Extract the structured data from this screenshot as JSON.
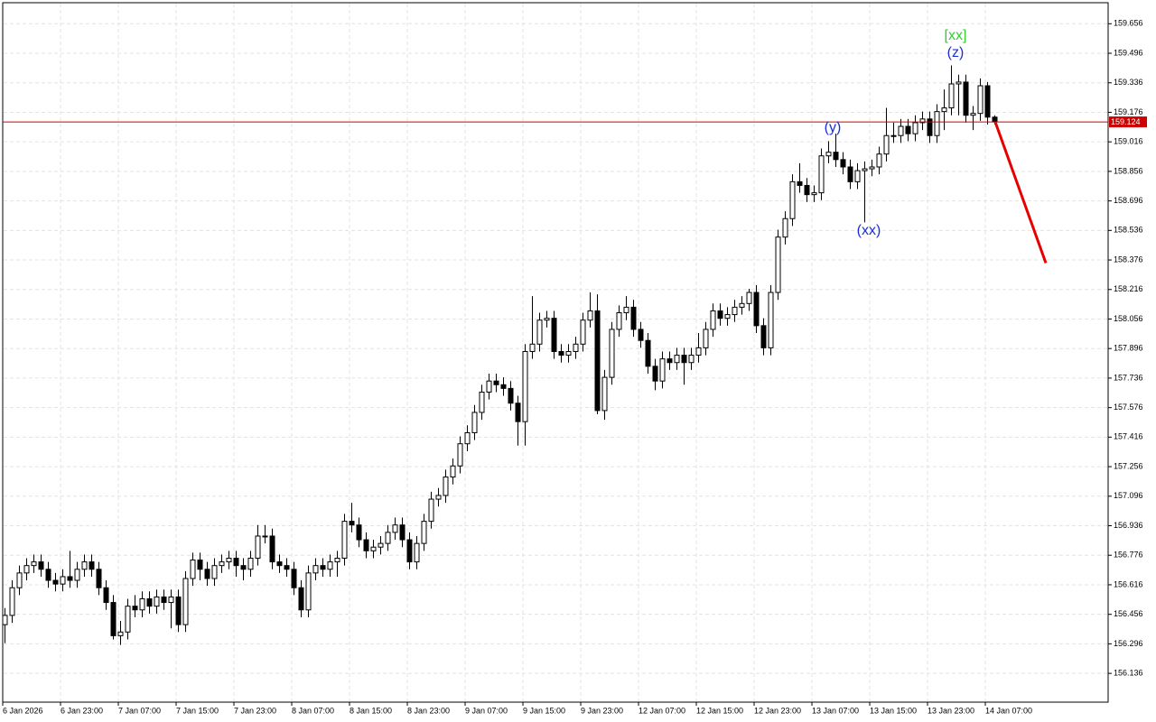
{
  "chart_data": {
    "type": "candlestick",
    "categories": [
      "6 Jan 2026",
      null,
      null,
      null,
      null,
      null,
      null,
      null,
      "6 Jan 23:00",
      null,
      null,
      null,
      null,
      null,
      null,
      null,
      "7 Jan 07:00",
      null,
      null,
      null,
      null,
      null,
      null,
      null,
      "7 Jan 15:00",
      null,
      null,
      null,
      null,
      null,
      null,
      null,
      "7 Jan 23:00",
      null,
      null,
      null,
      null,
      null,
      null,
      null,
      "8 Jan 07:00",
      null,
      null,
      null,
      null,
      null,
      null,
      null,
      "8 Jan 15:00",
      null,
      null,
      null,
      null,
      null,
      null,
      null,
      "8 Jan 23:00",
      null,
      null,
      null,
      null,
      null,
      null,
      null,
      "9 Jan 07:00",
      null,
      null,
      null,
      null,
      null,
      null,
      null,
      "9 Jan 15:00",
      null,
      null,
      null,
      null,
      null,
      null,
      null,
      "9 Jan 23:00",
      null,
      null,
      null,
      null,
      null,
      null,
      null,
      "12 Jan 07:00",
      null,
      null,
      null,
      null,
      null,
      null,
      null,
      "12 Jan 15:00",
      null,
      null,
      null,
      null,
      null,
      null,
      null,
      "12 Jan 23:00",
      null,
      null,
      null,
      null,
      null,
      null,
      null,
      "13 Jan 07:00",
      null,
      null,
      null,
      null,
      null,
      null,
      null,
      "13 Jan 15:00",
      null,
      null,
      null,
      null,
      null,
      null,
      null,
      "13 Jan 23:00",
      null,
      null,
      null,
      null,
      null,
      null,
      null,
      "14 Jan 07:00",
      null
    ],
    "open": [
      156.4,
      156.45,
      156.6,
      156.68,
      156.72,
      156.74,
      156.7,
      156.64,
      156.62,
      156.66,
      156.64,
      156.7,
      156.74,
      156.7,
      156.6,
      156.52,
      156.34,
      156.36,
      156.5,
      156.48,
      156.54,
      156.5,
      156.55,
      156.52,
      156.55,
      156.4,
      156.65,
      156.75,
      156.7,
      156.65,
      156.72,
      156.74,
      156.76,
      156.72,
      156.7,
      156.76,
      156.88,
      156.88,
      156.74,
      156.72,
      156.7,
      156.6,
      156.48,
      156.68,
      156.72,
      156.7,
      156.74,
      156.76,
      156.96,
      156.94,
      156.86,
      156.8,
      156.82,
      156.84,
      156.9,
      156.94,
      156.86,
      156.74,
      156.84,
      156.96,
      157.08,
      157.1,
      157.2,
      157.26,
      157.38,
      157.44,
      157.55,
      157.66,
      157.72,
      157.7,
      157.68,
      157.6,
      157.5,
      157.88,
      157.92,
      158.05,
      158.06,
      157.88,
      157.86,
      157.88,
      157.92,
      158.05,
      158.1,
      157.56,
      157.74,
      158.0,
      158.09,
      158.12,
      158.0,
      157.94,
      157.8,
      157.72,
      157.84,
      157.82,
      157.86,
      157.82,
      157.86,
      157.9,
      158.0,
      158.1,
      158.06,
      158.08,
      158.12,
      158.14,
      158.2,
      158.02,
      157.9,
      158.2,
      158.5,
      158.6,
      158.8,
      158.78,
      158.73,
      158.74,
      158.94,
      158.96,
      158.92,
      158.88,
      158.8,
      158.86,
      158.87,
      158.88,
      158.95,
      159.05,
      159.05,
      159.1,
      159.06,
      159.12,
      159.14,
      159.05,
      159.18,
      159.2,
      159.33,
      159.34,
      159.16,
      159.17,
      159.32,
      159.15
    ],
    "high": [
      156.49,
      156.64,
      156.72,
      156.76,
      156.78,
      156.78,
      156.74,
      156.68,
      156.7,
      156.8,
      156.74,
      156.78,
      156.78,
      156.74,
      156.64,
      156.56,
      156.42,
      156.54,
      156.56,
      156.58,
      156.58,
      156.59,
      156.59,
      156.59,
      156.59,
      156.69,
      156.79,
      156.79,
      156.74,
      156.76,
      156.78,
      156.8,
      156.8,
      156.76,
      156.8,
      156.94,
      156.94,
      156.92,
      156.78,
      156.76,
      156.74,
      156.64,
      156.72,
      156.76,
      156.76,
      156.78,
      156.8,
      157.0,
      157.06,
      156.98,
      156.9,
      156.86,
      156.88,
      156.94,
      156.98,
      156.98,
      156.9,
      156.88,
      157.0,
      157.12,
      157.14,
      157.24,
      157.3,
      157.42,
      157.48,
      157.59,
      157.7,
      157.76,
      157.76,
      157.74,
      157.72,
      157.64,
      157.92,
      158.18,
      158.09,
      158.1,
      158.1,
      157.92,
      157.92,
      157.96,
      158.09,
      158.2,
      158.19,
      157.78,
      158.04,
      158.13,
      158.18,
      158.16,
      158.04,
      157.98,
      157.84,
      157.88,
      157.88,
      157.9,
      157.9,
      157.9,
      157.98,
      158.04,
      158.14,
      158.14,
      158.12,
      158.16,
      158.18,
      158.22,
      158.24,
      158.06,
      158.24,
      158.54,
      158.64,
      158.84,
      158.9,
      158.82,
      158.78,
      158.98,
      159.02,
      159.06,
      158.96,
      158.92,
      158.9,
      158.91,
      158.92,
      158.99,
      159.2,
      159.12,
      159.14,
      159.14,
      159.16,
      159.18,
      159.18,
      159.22,
      159.3,
      159.43,
      159.38,
      159.38,
      159.21,
      159.36,
      159.34,
      159.16
    ],
    "low": [
      156.3,
      156.41,
      156.56,
      156.64,
      156.68,
      156.66,
      156.6,
      156.58,
      156.58,
      156.6,
      156.6,
      156.66,
      156.66,
      156.56,
      156.48,
      156.32,
      156.29,
      156.32,
      156.44,
      156.44,
      156.46,
      156.46,
      156.48,
      156.38,
      156.36,
      156.36,
      156.61,
      156.64,
      156.61,
      156.61,
      156.68,
      156.7,
      156.66,
      156.64,
      156.66,
      156.72,
      156.84,
      156.7,
      156.68,
      156.66,
      156.56,
      156.44,
      156.44,
      156.64,
      156.66,
      156.66,
      156.66,
      156.72,
      156.9,
      156.82,
      156.76,
      156.76,
      156.78,
      156.8,
      156.86,
      156.82,
      156.7,
      156.7,
      156.8,
      156.92,
      157.04,
      157.06,
      157.16,
      157.22,
      157.34,
      157.4,
      157.51,
      157.62,
      157.66,
      157.64,
      157.56,
      157.37,
      157.37,
      157.84,
      157.88,
      158.01,
      157.84,
      157.82,
      157.82,
      157.84,
      157.88,
      158.01,
      157.54,
      157.51,
      157.7,
      157.96,
      158.05,
      157.96,
      157.9,
      157.76,
      157.67,
      157.68,
      157.78,
      157.78,
      157.7,
      157.78,
      157.82,
      157.86,
      157.96,
      158.02,
      158.02,
      158.04,
      158.08,
      158.1,
      157.98,
      157.86,
      157.86,
      158.16,
      158.46,
      158.56,
      158.74,
      158.69,
      158.69,
      158.7,
      158.9,
      158.88,
      158.84,
      158.76,
      158.76,
      158.58,
      158.83,
      158.84,
      158.91,
      159.01,
      159.01,
      159.02,
      159.02,
      159.08,
      159.01,
      159.01,
      159.08,
      159.16,
      159.16,
      159.12,
      159.08,
      159.13,
      159.11,
      159.11
    ],
    "close": [
      156.45,
      156.6,
      156.68,
      156.72,
      156.74,
      156.7,
      156.64,
      156.62,
      156.66,
      156.64,
      156.7,
      156.74,
      156.7,
      156.6,
      156.52,
      156.34,
      156.36,
      156.5,
      156.48,
      156.54,
      156.5,
      156.55,
      156.52,
      156.55,
      156.4,
      156.65,
      156.75,
      156.7,
      156.65,
      156.72,
      156.74,
      156.76,
      156.72,
      156.7,
      156.76,
      156.88,
      156.88,
      156.74,
      156.72,
      156.7,
      156.6,
      156.48,
      156.68,
      156.72,
      156.7,
      156.74,
      156.76,
      156.96,
      156.94,
      156.86,
      156.8,
      156.82,
      156.84,
      156.9,
      156.94,
      156.86,
      156.74,
      156.84,
      156.96,
      157.08,
      157.1,
      157.2,
      157.26,
      157.38,
      157.44,
      157.55,
      157.66,
      157.72,
      157.7,
      157.68,
      157.6,
      157.5,
      157.88,
      157.92,
      158.05,
      158.06,
      157.88,
      157.86,
      157.88,
      157.92,
      158.05,
      158.1,
      157.56,
      157.74,
      158.0,
      158.09,
      158.12,
      158.0,
      157.94,
      157.8,
      157.72,
      157.84,
      157.82,
      157.86,
      157.82,
      157.86,
      157.9,
      158.0,
      158.1,
      158.06,
      158.08,
      158.12,
      158.14,
      158.2,
      158.02,
      157.9,
      158.2,
      158.5,
      158.6,
      158.8,
      158.78,
      158.73,
      158.74,
      158.94,
      158.96,
      158.92,
      158.88,
      158.8,
      158.86,
      158.87,
      158.88,
      158.95,
      159.05,
      159.05,
      159.1,
      159.06,
      159.12,
      159.14,
      159.05,
      159.18,
      159.2,
      159.33,
      159.34,
      159.16,
      159.17,
      159.32,
      159.15,
      159.124
    ],
    "up_color": "#ffffff",
    "down_color": "#000000",
    "ylim": [
      155.98,
      159.77
    ],
    "yticks": [
      156.136,
      156.296,
      156.456,
      156.616,
      156.776,
      156.936,
      157.096,
      157.256,
      157.416,
      157.576,
      157.736,
      157.896,
      158.056,
      158.216,
      158.376,
      158.536,
      158.696,
      158.856,
      159.016,
      159.176,
      159.336,
      159.496,
      159.656
    ],
    "grid": true,
    "price_line": {
      "value": 159.124,
      "color": "#cc0000"
    },
    "forecast": {
      "values": [
        159.124,
        158.36
      ],
      "color": "#e60000"
    },
    "annotations": [
      {
        "text": "(y)",
        "color": "#1a2fd6"
      },
      {
        "text": "(xx)",
        "color": "#1a2fd6"
      },
      {
        "text": "[xx]",
        "color": "#33cc33"
      },
      {
        "text": "(z)",
        "color": "#1a2fd6"
      }
    ]
  }
}
